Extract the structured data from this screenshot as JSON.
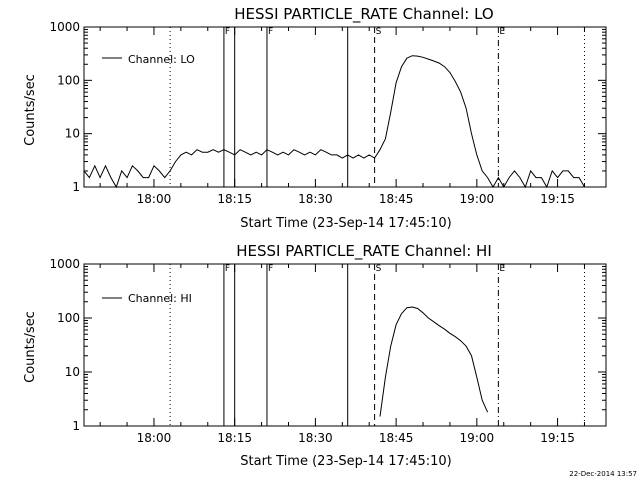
{
  "footer_timestamp": "22-Dec-2014 13:57",
  "chart_data": [
    {
      "type": "line",
      "title": "HESSI PARTICLE_RATE Channel: LO",
      "xlabel": "Start Time (23-Sep-14 17:45:10)",
      "ylabel": "Counts/sec",
      "yscale": "log",
      "ylim": [
        1,
        1000
      ],
      "xlim": [
        "17:47",
        "19:24"
      ],
      "x_ticks": [
        "18:00",
        "18:15",
        "18:30",
        "18:45",
        "19:00",
        "19:15"
      ],
      "y_ticks": [
        "1",
        "10",
        "100",
        "1000"
      ],
      "legend": "Channel: LO",
      "legend_position": "top-left",
      "markers": [
        {
          "label": "",
          "time": "18:03",
          "style": "dotted"
        },
        {
          "label": "F",
          "time": "18:13",
          "style": "solid"
        },
        {
          "label": "",
          "time": "18:15",
          "style": "solid"
        },
        {
          "label": "F",
          "time": "18:21",
          "style": "solid"
        },
        {
          "label": "",
          "time": "18:36",
          "style": "solid"
        },
        {
          "label": "S",
          "time": "18:41",
          "style": "dashed"
        },
        {
          "label": "E",
          "time": "19:04",
          "style": "dash-dot"
        },
        {
          "label": "",
          "time": "19:20",
          "style": "dotted"
        }
      ],
      "series": [
        {
          "name": "Channel: LO",
          "x": [
            "17:47",
            "17:48",
            "17:49",
            "17:50",
            "17:51",
            "17:52",
            "17:53",
            "17:54",
            "17:55",
            "17:56",
            "17:57",
            "17:58",
            "17:59",
            "18:00",
            "18:01",
            "18:02",
            "18:03",
            "18:04",
            "18:05",
            "18:06",
            "18:07",
            "18:08",
            "18:09",
            "18:10",
            "18:11",
            "18:12",
            "18:13",
            "18:14",
            "18:15",
            "18:16",
            "18:17",
            "18:18",
            "18:19",
            "18:20",
            "18:21",
            "18:22",
            "18:23",
            "18:24",
            "18:25",
            "18:26",
            "18:27",
            "18:28",
            "18:29",
            "18:30",
            "18:31",
            "18:32",
            "18:33",
            "18:34",
            "18:35",
            "18:36",
            "18:37",
            "18:38",
            "18:39",
            "18:40",
            "18:41",
            "18:42",
            "18:43",
            "18:44",
            "18:45",
            "18:46",
            "18:47",
            "18:48",
            "18:49",
            "18:50",
            "18:51",
            "18:52",
            "18:53",
            "18:54",
            "18:55",
            "18:56",
            "18:57",
            "18:58",
            "18:59",
            "19:00",
            "19:01",
            "19:02",
            "19:03",
            "19:04",
            "19:05",
            "19:06",
            "19:07",
            "19:08",
            "19:09",
            "19:10",
            "19:11",
            "19:12",
            "19:13",
            "19:14",
            "19:15",
            "19:16",
            "19:17",
            "19:18",
            "19:19",
            "19:20"
          ],
          "y": [
            2,
            1.5,
            2.5,
            1.5,
            2.5,
            1.5,
            1,
            2,
            1.5,
            2.5,
            2,
            1.5,
            1.5,
            2.5,
            2,
            1.5,
            2,
            3,
            4,
            4.5,
            4,
            5,
            4.5,
            4.5,
            5,
            4.5,
            5,
            4.5,
            4,
            5,
            4.5,
            4,
            4.5,
            4,
            5,
            4.5,
            4,
            4.5,
            4,
            5,
            4.5,
            4,
            4.5,
            4,
            5,
            4.5,
            4,
            4,
            3.5,
            4,
            3.5,
            4,
            3.5,
            4,
            3.5,
            5,
            8,
            25,
            90,
            180,
            260,
            290,
            285,
            270,
            250,
            230,
            210,
            180,
            140,
            95,
            60,
            30,
            10,
            4,
            2,
            1.5,
            1,
            1.5,
            1,
            1.5,
            2,
            1.5,
            1,
            2,
            1.5,
            1.5,
            1,
            2,
            1.5,
            2,
            2,
            1.5,
            1.5,
            1
          ]
        }
      ]
    },
    {
      "type": "line",
      "title": "HESSI PARTICLE_RATE Channel: HI",
      "xlabel": "Start Time (23-Sep-14 17:45:10)",
      "ylabel": "Counts/sec",
      "yscale": "log",
      "ylim": [
        1,
        1000
      ],
      "xlim": [
        "17:47",
        "19:24"
      ],
      "x_ticks": [
        "18:00",
        "18:15",
        "18:30",
        "18:45",
        "19:00",
        "19:15"
      ],
      "y_ticks": [
        "1",
        "10",
        "100",
        "1000"
      ],
      "legend": "Channel: HI",
      "legend_position": "top-left",
      "markers": [
        {
          "label": "",
          "time": "18:03",
          "style": "dotted"
        },
        {
          "label": "F",
          "time": "18:13",
          "style": "solid"
        },
        {
          "label": "",
          "time": "18:15",
          "style": "solid"
        },
        {
          "label": "F",
          "time": "18:21",
          "style": "solid"
        },
        {
          "label": "",
          "time": "18:36",
          "style": "solid"
        },
        {
          "label": "S",
          "time": "18:41",
          "style": "dashed"
        },
        {
          "label": "E",
          "time": "19:04",
          "style": "dash-dot"
        },
        {
          "label": "",
          "time": "19:20",
          "style": "dotted"
        }
      ],
      "series": [
        {
          "name": "Channel: HI",
          "x": [
            "18:42",
            "18:43",
            "18:44",
            "18:45",
            "18:46",
            "18:47",
            "18:48",
            "18:49",
            "18:50",
            "18:51",
            "18:52",
            "18:53",
            "18:54",
            "18:55",
            "18:56",
            "18:57",
            "18:58",
            "18:59",
            "19:00",
            "19:01",
            "19:02"
          ],
          "y": [
            1.5,
            8,
            30,
            75,
            120,
            155,
            160,
            150,
            125,
            100,
            85,
            72,
            62,
            52,
            45,
            38,
            30,
            20,
            8,
            3,
            1.8
          ]
        }
      ]
    }
  ]
}
